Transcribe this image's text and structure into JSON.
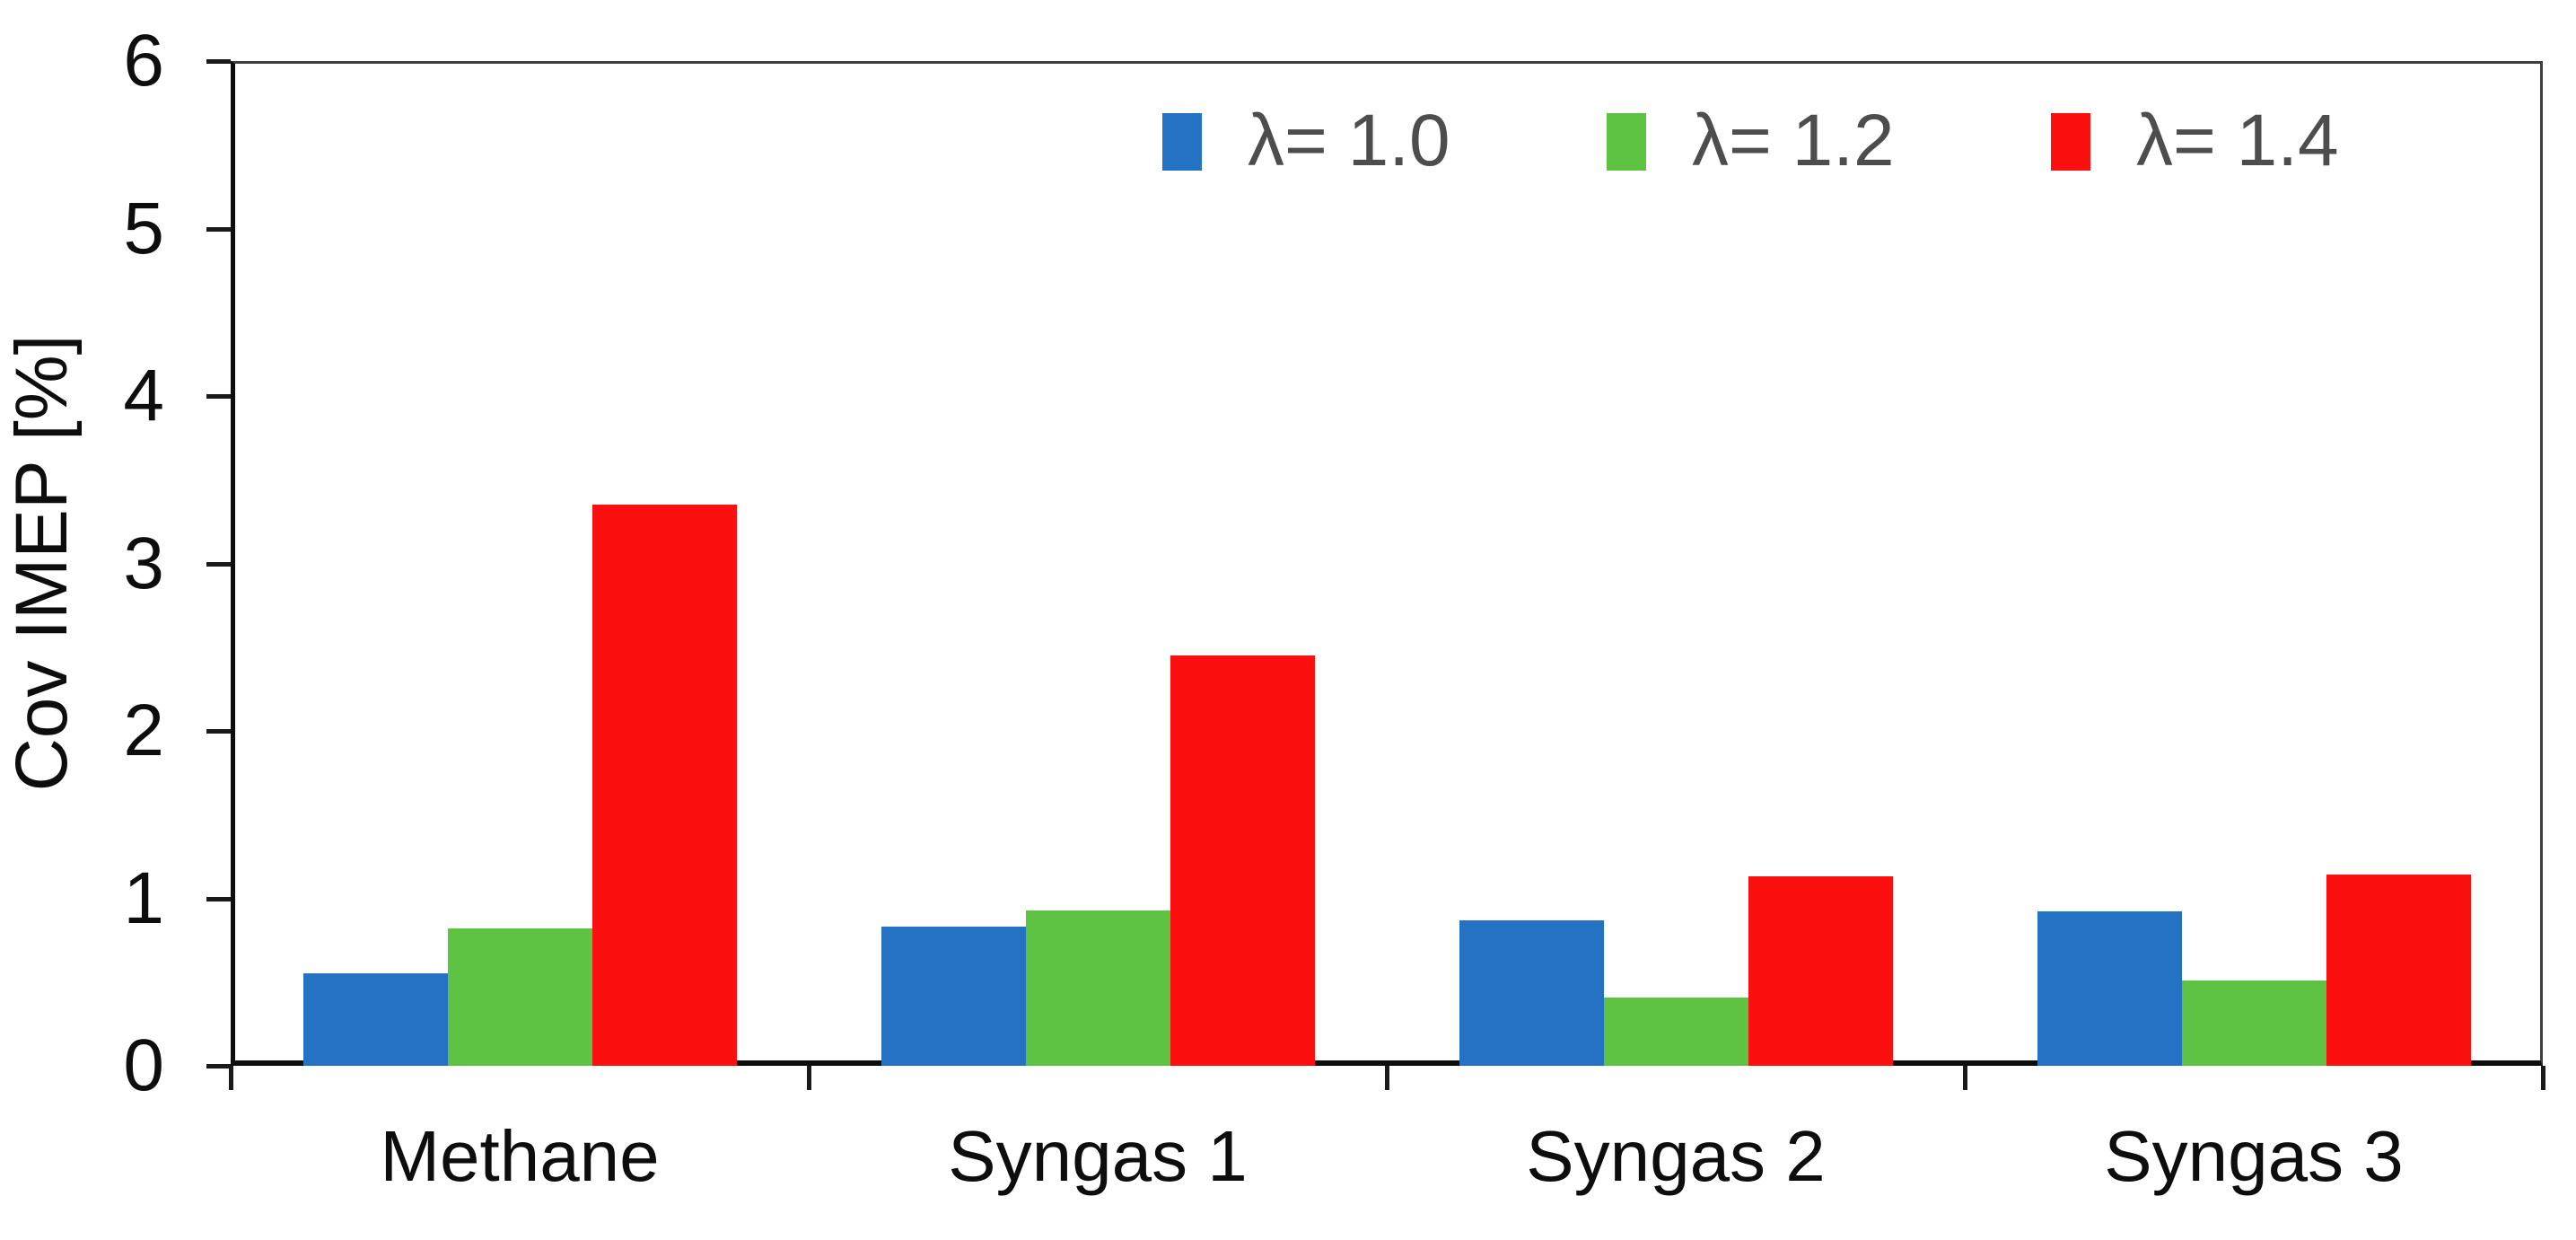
{
  "figure": {
    "background_color": "#ffffff",
    "frame_color": "#3f3f3f",
    "axis_color": "#0d0d0d"
  },
  "chart_data": {
    "type": "bar",
    "title": "",
    "xlabel": "",
    "ylabel": "Cov IMEP [%]",
    "categories": [
      "Methane",
      "Syngas 1",
      "Syngas 2",
      "Syngas 3"
    ],
    "series": [
      {
        "name": "λ= 1.0",
        "color": "#2372c4",
        "values": [
          0.55,
          0.83,
          0.87,
          0.92
        ]
      },
      {
        "name": "λ= 1.2",
        "color": "#5ec343",
        "values": [
          0.82,
          0.93,
          0.41,
          0.51
        ]
      },
      {
        "name": "λ= 1.4",
        "color": "#fb0f0f",
        "values": [
          3.35,
          2.45,
          1.13,
          1.14
        ]
      }
    ],
    "ylim": [
      0,
      6
    ],
    "yticks": [
      0,
      1,
      2,
      3,
      4,
      5,
      6
    ],
    "grid": false,
    "legend_position": "top-inside",
    "legend_text_color": "#4d4d4d"
  }
}
